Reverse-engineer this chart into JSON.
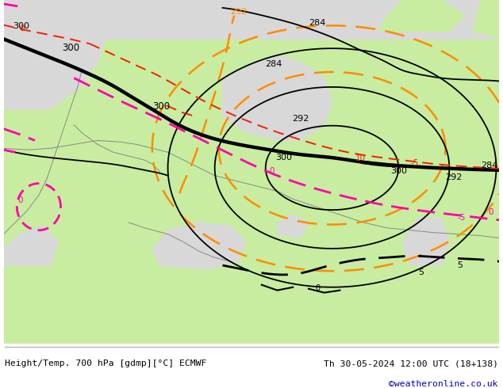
{
  "title_left": "Height/Temp. 700 hPa [gdmp][°C] ECMWF",
  "title_right": "Th 30-05-2024 12:00 UTC (18+138)",
  "credit": "©weatheronline.co.uk",
  "bg_color": "#d8d8d8",
  "land_color": "#c8edA0",
  "credit_color": "#0000cc",
  "orange_color": "#FF8C00",
  "red_color": "#EE2200",
  "pink_color": "#FF00AA",
  "black_color": "#000000"
}
